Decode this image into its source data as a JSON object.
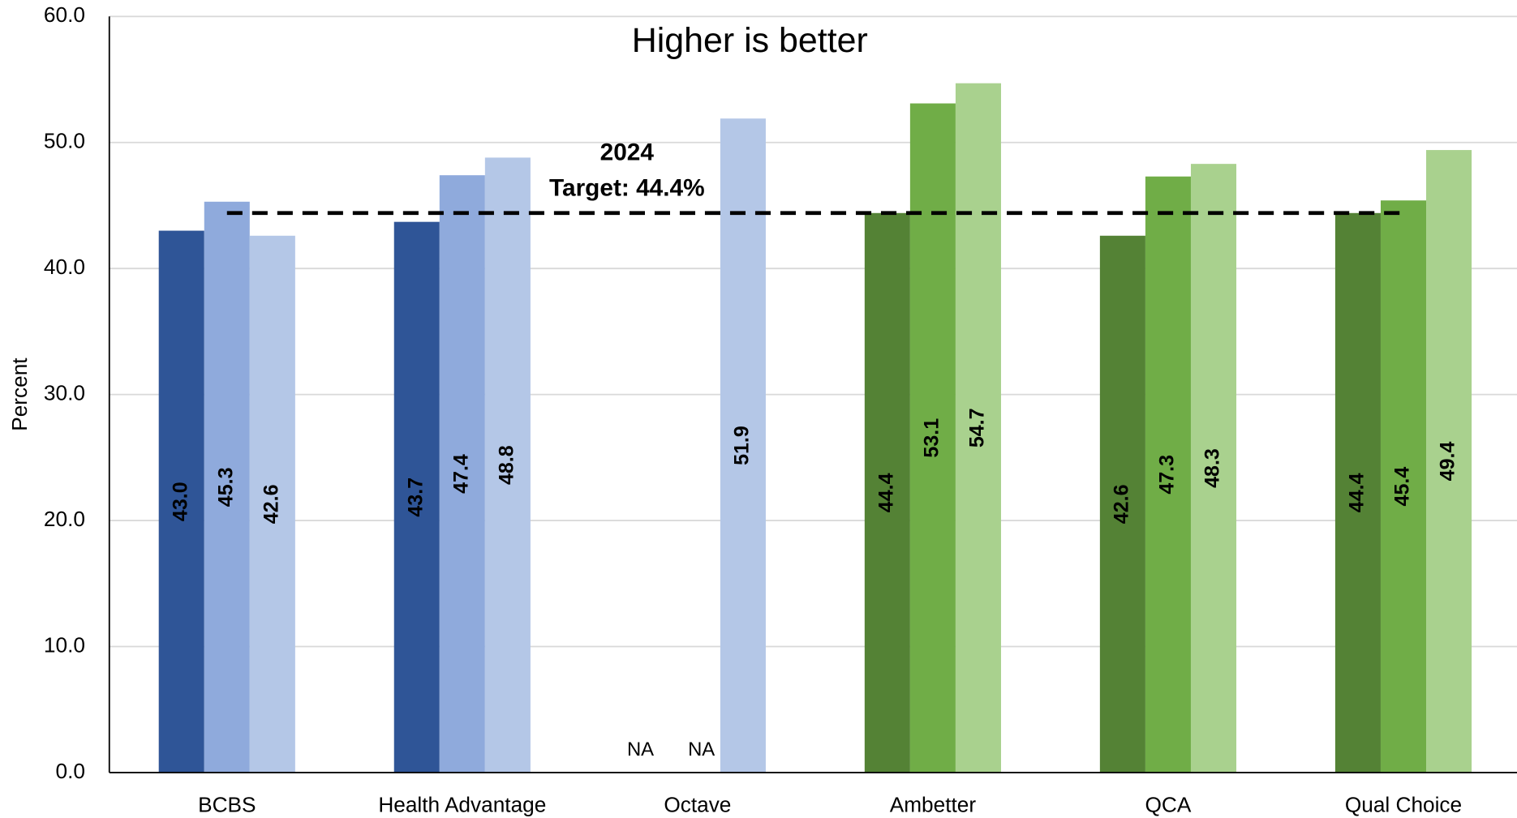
{
  "chart_data": {
    "type": "bar",
    "title": "Higher is better",
    "y_label": "Percent",
    "categories": [
      "BCBS",
      "Health Advantage",
      "Octave",
      "Ambetter",
      "QCA",
      "Qual Choice"
    ],
    "series": [
      {
        "colors": [
          "#2f5597",
          "#2f5597",
          "#2f5597",
          "#548235",
          "#548235",
          "#548235"
        ],
        "values": [
          43.0,
          43.7,
          null,
          44.4,
          42.6,
          44.4
        ],
        "value_labels": [
          "43.0",
          "43.7",
          "NA",
          "44.4",
          "42.6",
          "44.4"
        ]
      },
      {
        "colors": [
          "#8faadc",
          "#8faadc",
          "#8faadc",
          "#70ad47",
          "#70ad47",
          "#70ad47"
        ],
        "values": [
          45.3,
          47.4,
          null,
          53.1,
          47.3,
          45.4
        ],
        "value_labels": [
          "45.3",
          "47.4",
          "NA",
          "53.1",
          "47.3",
          "45.4"
        ]
      },
      {
        "colors": [
          "#b4c7e7",
          "#b4c7e7",
          "#b4c7e7",
          "#a9d18e",
          "#a9d18e",
          "#a9d18e"
        ],
        "values": [
          42.6,
          48.8,
          51.9,
          54.7,
          48.3,
          49.4
        ],
        "value_labels": [
          "42.6",
          "48.8",
          "51.9",
          "54.7",
          "48.3",
          "49.4"
        ]
      }
    ],
    "target": {
      "value": 44.4,
      "labels": [
        "2024",
        "Target: 44.4%"
      ]
    },
    "ylim": [
      0,
      60
    ],
    "yticks": [
      {
        "value": 0,
        "label": "0.0"
      },
      {
        "value": 10,
        "label": "10.0"
      },
      {
        "value": 20,
        "label": "20.0"
      },
      {
        "value": 30,
        "label": "30.0"
      },
      {
        "value": 40,
        "label": "40.0"
      },
      {
        "value": 50,
        "label": "50.0"
      },
      {
        "value": 60,
        "label": "60.0"
      }
    ],
    "grid": true
  }
}
